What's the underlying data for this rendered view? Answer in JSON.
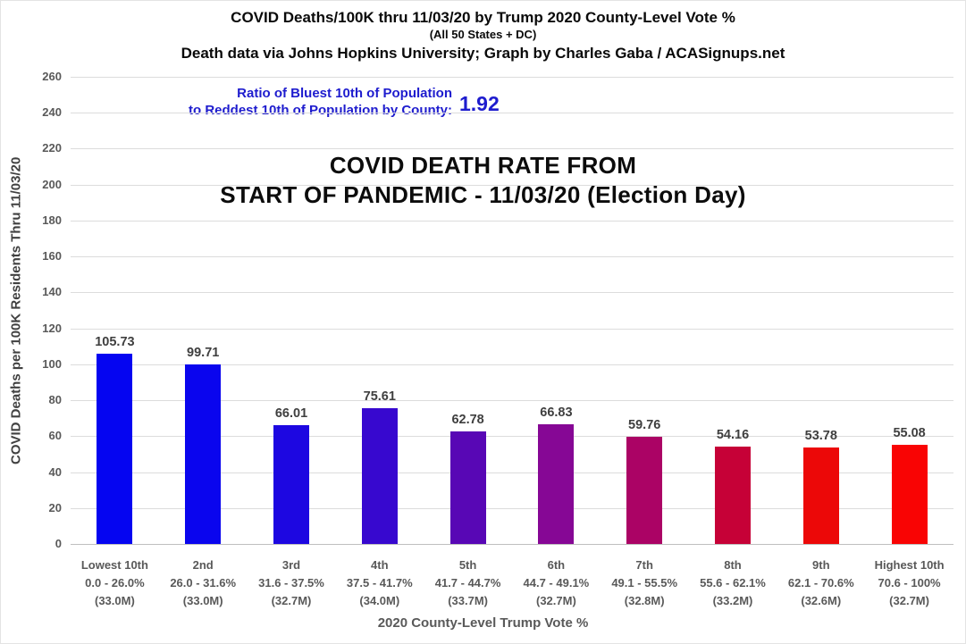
{
  "header": {
    "title": "COVID Deaths/100K thru 11/03/20 by Trump 2020 County-Level Vote %",
    "subtitle": "(All 50 States + DC)",
    "credit": "Death data via Johns Hopkins University; Graph by Charles Gaba / ACASignups.net"
  },
  "ratio_note": {
    "line1": "Ratio of Bluest 10th of Population",
    "line2": "to Reddest 10th of Population by County:",
    "value": "1.92",
    "color": "#1e1cce"
  },
  "annotation": {
    "line1": "COVID DEATH RATE FROM",
    "line2": "START OF PANDEMIC - 11/03/20 (Election Day)"
  },
  "chart_data": {
    "type": "bar",
    "title": "COVID DEATH RATE FROM START OF PANDEMIC - 11/03/20 (Election Day)",
    "xlabel": "2020 County-Level Trump Vote %",
    "ylabel": "COVID Deaths per 100K Residents Thru 11/03/20",
    "ylim": [
      0,
      260
    ],
    "ytick_step": 20,
    "grid": true,
    "legend": "none",
    "categories": [
      [
        "Lowest 10th",
        "0.0 - 26.0%",
        "(33.0M)"
      ],
      [
        "2nd",
        "26.0 - 31.6%",
        "(33.0M)"
      ],
      [
        "3rd",
        "31.6 - 37.5%",
        "(32.7M)"
      ],
      [
        "4th",
        "37.5 - 41.7%",
        "(34.0M)"
      ],
      [
        "5th",
        "41.7 - 44.7%",
        "(33.7M)"
      ],
      [
        "6th",
        "44.7 - 49.1%",
        "(32.7M)"
      ],
      [
        "7th",
        "49.1 - 55.5%",
        "(32.8M)"
      ],
      [
        "8th",
        "55.6 - 62.1%",
        "(33.2M)"
      ],
      [
        "9th",
        "62.1 - 70.6%",
        "(32.6M)"
      ],
      [
        "Highest 10th",
        "70.6 - 100%",
        "(32.7M)"
      ]
    ],
    "values": [
      105.73,
      99.71,
      66.01,
      75.61,
      62.78,
      66.83,
      59.76,
      54.16,
      53.78,
      55.08
    ],
    "bar_colors": [
      "#0505f1",
      "#0a05ee",
      "#1d07e1",
      "#3708cf",
      "#5807b5",
      "#860795",
      "#ab0365",
      "#c60137",
      "#ec0808",
      "#f90404"
    ]
  }
}
